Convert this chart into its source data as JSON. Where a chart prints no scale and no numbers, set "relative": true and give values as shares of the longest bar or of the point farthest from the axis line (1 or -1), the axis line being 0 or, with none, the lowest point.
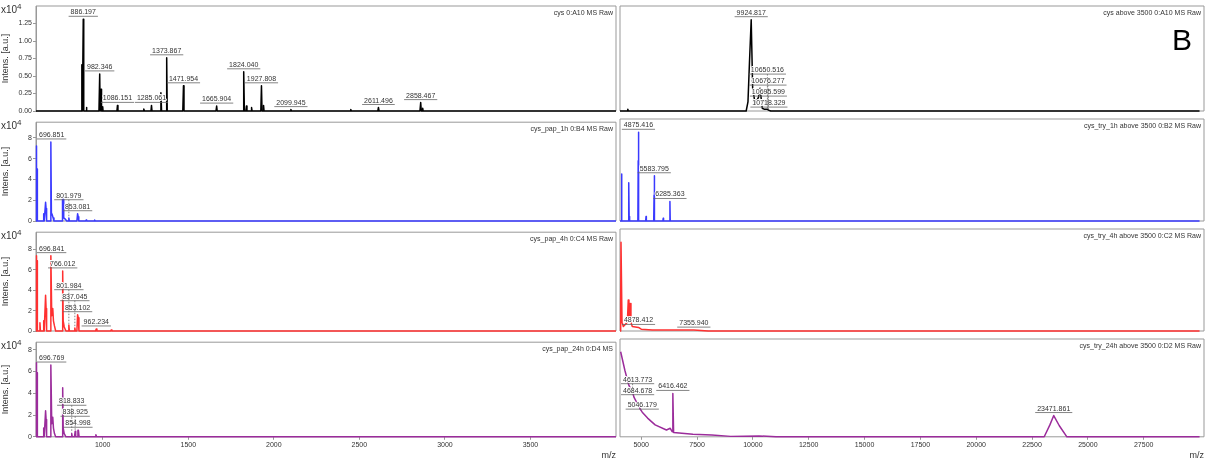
{
  "chart_data": [
    {
      "type": "line",
      "title": "cys 0:A10 MS Raw",
      "ylabel": "Intens. [a.u.]",
      "annotations": [
        "x10$^{4}$",
        {
          "text": "886.197",
          "x": 886.197,
          "y": 1.31
        },
        {
          "text": "982.346",
          "x": 982.346,
          "y": 0.53
        },
        {
          "text": "1086.151",
          "x": 1086.151,
          "y": 0.08
        },
        {
          "text": "1285.061",
          "x": 1285.061,
          "y": 0.08
        },
        {
          "text": "1373.867",
          "x": 1373.867,
          "y": 0.76
        },
        {
          "text": "1471.954",
          "x": 1471.954,
          "y": 0.36
        },
        {
          "text": "1665.904",
          "x": 1665.904,
          "y": 0.07
        },
        {
          "text": "1824.040",
          "x": 1824.04,
          "y": 0.56
        },
        {
          "text": "1927.808",
          "x": 1927.808,
          "y": 0.36
        },
        {
          "text": "2099.945",
          "x": 2099.945,
          "y": 0.02
        },
        {
          "text": "2611.496",
          "x": 2611.496,
          "y": 0.05
        },
        {
          "text": "2858.467",
          "x": 2858.467,
          "y": 0.12
        }
      ],
      "xlim": [
        610,
        4000
      ],
      "ylim": [
        0,
        1.5
      ],
      "yticks": [
        {
          "value": 0,
          "label": "0.00"
        },
        {
          "value": 0.25,
          "label": "0.25"
        },
        {
          "value": 0.5,
          "label": "0.50"
        },
        {
          "value": 0.75,
          "label": "0.75"
        },
        {
          "value": 1,
          "label": "1.00"
        },
        {
          "value": 1.25,
          "label": "1.25"
        }
      ],
      "tick_labels": "y",
      "series": [
        {
          "color": "#000000",
          "x": [
            610,
            874,
            878,
            881,
            883,
            886.197,
            889,
            903,
            905,
            907,
            978,
            982.346,
            985,
            987,
            990,
            993,
            998,
            1000,
            1002,
            1083,
            1086.151,
            1089,
            1236,
            1240,
            1244,
            1282,
            1285.061,
            1288,
            1336,
            1340,
            1344,
            1370,
            1373.867,
            1377,
            1468,
            1471.954,
            1475,
            1662,
            1665.904,
            1669,
            1820,
            1824.04,
            1828,
            1837,
            1840,
            1843,
            1867,
            1870,
            1873,
            1924,
            1927.808,
            1931,
            1937,
            1940,
            1943,
            2096,
            2099.945,
            2103,
            2446,
            2450,
            2454,
            2608,
            2611.496,
            2615,
            2854,
            2858.467,
            2862,
            2867,
            2870,
            2873,
            4000
          ],
          "values": [
            0,
            0,
            0.66,
            0,
            0,
            1.31,
            0,
            0,
            0.05,
            0,
            0,
            0.53,
            0,
            0,
            0.31,
            0,
            0,
            0.06,
            0,
            0,
            0.08,
            0,
            0,
            0.03,
            0,
            0,
            0.08,
            0,
            0,
            0.26,
            0,
            0,
            0.76,
            0,
            0,
            0.36,
            0,
            0,
            0.07,
            0,
            0,
            0.56,
            0,
            0,
            0.07,
            0,
            0,
            0.05,
            0,
            0,
            0.36,
            0,
            0,
            0.08,
            0,
            0,
            0.02,
            0,
            0,
            0.02,
            0,
            0,
            0.05,
            0,
            0,
            0.12,
            0,
            0,
            0.04,
            0,
            0
          ]
        }
      ]
    },
    {
      "type": "line",
      "title": "cys above 3500 0:A10 MS Raw",
      "relative": true,
      "annotations": [
        "B",
        {
          "text": "9924.817",
          "x": 9924.817,
          "y": 1
        },
        {
          "text": "10650.516",
          "x": 10650.516,
          "y": 0.02
        },
        {
          "text": "10676.277",
          "x": 10676.277,
          "y": 0.02
        },
        {
          "text": "10695.599",
          "x": 10695.599,
          "y": 0.01
        },
        {
          "text": "10718.329",
          "x": 10718.329,
          "y": 0.01
        }
      ],
      "xlim": [
        4050,
        30200
      ],
      "tick_labels": false,
      "series": [
        {
          "color": "#000000",
          "x": [
            4050,
            4380,
            4400,
            4420,
            9700,
            9780,
            9850,
            9924.817,
            9990,
            10100,
            10250,
            10320,
            10420,
            10500,
            10650.516,
            10676.277,
            10695.599,
            10718.329,
            10800,
            30000
          ],
          "values": [
            0,
            0,
            0.02,
            0,
            0,
            0.1,
            0.55,
            1,
            0.25,
            0.08,
            0.15,
            0.25,
            0.03,
            0.02,
            0.02,
            0.02,
            0.01,
            0.01,
            0,
            0
          ]
        }
      ]
    },
    {
      "type": "line",
      "title": "cys_pap_1h 0:B4 MS Raw",
      "ylabel": "Intens. [a.u.]",
      "annotations": [
        "x10$^{4}$",
        {
          "text": "696.851",
          "x": 696.851,
          "y": 7.6
        },
        {
          "text": "801.979",
          "x": 801.979,
          "y": 0.3
        },
        {
          "text": "853.081",
          "x": 853.081,
          "y": 0.7
        }
      ],
      "xlim": [
        610,
        4000
      ],
      "ylim": [
        0,
        9.5
      ],
      "yticks": [
        0,
        2,
        4,
        6,
        8
      ],
      "tick_labels": "y",
      "series": [
        {
          "color": "#3a3aff",
          "x": [
            610,
            612,
            614,
            616,
            618,
            652,
            655,
            658,
            662,
            666,
            669,
            672,
            693,
            696.851,
            700,
            705,
            710,
            715,
            762,
            765,
            769,
            772,
            780,
            790,
            798,
            801.979,
            805,
            849,
            853.081,
            857,
            860,
            900,
            903,
            906,
            950,
            953,
            956,
            4000
          ],
          "values": [
            0,
            7.2,
            0,
            5,
            0,
            0,
            0.7,
            0,
            0,
            1.8,
            1.2,
            0,
            0,
            7.6,
            0.8,
            0.6,
            0.3,
            0,
            0,
            2.4,
            2.1,
            0.3,
            0.2,
            0,
            0,
            0.3,
            0,
            0,
            0.7,
            0.4,
            0,
            0,
            0.1,
            0,
            0,
            0.1,
            0,
            0
          ]
        }
      ]
    },
    {
      "type": "line",
      "title": "cys_try_1h above 3500 0:B2 MS Raw",
      "relative": true,
      "annotations": [
        {
          "text": "4875.416",
          "x": 4875.416,
          "y": 1
        },
        {
          "text": "5583.795",
          "x": 5583.795,
          "y": 0.51
        },
        {
          "text": "6285.363",
          "x": 6285.363,
          "y": 0.22
        }
      ],
      "xlim": [
        4050,
        30200
      ],
      "tick_labels": false,
      "series": [
        {
          "color": "#3a3aff",
          "x": [
            4050,
            4100,
            4119,
            4135,
            4420,
            4441,
            4460,
            4480,
            4850,
            4865,
            4875.416,
            4890,
            5200,
            5215,
            5230,
            5560,
            5575,
            5583.795,
            5600,
            5970,
            5985,
            6000,
            6270,
            6285.363,
            6300,
            30000
          ],
          "values": [
            0,
            0,
            0.53,
            0,
            0,
            0.43,
            0.05,
            0,
            0,
            0.68,
            1,
            0,
            0,
            0.05,
            0,
            0,
            0.29,
            0.51,
            0,
            0,
            0.03,
            0,
            0,
            0.22,
            0,
            0
          ]
        }
      ]
    },
    {
      "type": "line",
      "title": "cys_pap_4h 0:C4 MS Raw",
      "ylabel": "Intens. [a.u.]",
      "annotations": [
        "x10$^{4}$",
        {
          "text": "696.841",
          "x": 696.841,
          "y": 7.4
        },
        {
          "text": "766.012",
          "x": 766.012,
          "y": 5.9
        },
        {
          "text": "801.984",
          "x": 801.984,
          "y": 0.6
        },
        {
          "text": "837.045",
          "x": 837.045,
          "y": 0.3
        },
        {
          "text": "853.102",
          "x": 853.102,
          "y": 1.6
        },
        {
          "text": "962.234",
          "x": 962.234,
          "y": 0.2
        }
      ],
      "xlim": [
        610,
        4000
      ],
      "ylim": [
        0,
        9.7
      ],
      "yticks": [
        0,
        2,
        4,
        6,
        8
      ],
      "tick_labels": "y",
      "series": [
        {
          "color": "#ff3030",
          "x": [
            610,
            612,
            614,
            616,
            618,
            630,
            633,
            636,
            652,
            655,
            658,
            662,
            666,
            669,
            672,
            693,
            696.841,
            702,
            708,
            712,
            718,
            725,
            762,
            766.012,
            769,
            775,
            785,
            798,
            801.984,
            805,
            834,
            837.045,
            840,
            849,
            853.102,
            857,
            861,
            958,
            962.234,
            966,
            1046,
            1050,
            1054,
            4000
          ],
          "values": [
            0,
            7.4,
            0,
            6.9,
            0,
            0,
            0.8,
            0,
            0,
            1,
            0,
            0,
            3.5,
            2.2,
            0,
            0,
            7.4,
            1.5,
            2.2,
            1,
            0.5,
            0,
            0,
            5.9,
            1,
            0.4,
            0,
            0,
            0.6,
            0,
            0,
            0.3,
            0,
            0,
            1.6,
            1.3,
            0,
            0,
            0.2,
            0,
            0,
            0.1,
            0,
            0
          ]
        }
      ]
    },
    {
      "type": "line",
      "title": "cys_try_4h above 3500 0:C2 MS Raw",
      "relative": true,
      "annotations": [
        {
          "text": "4878.412",
          "x": 4878.412,
          "y": 0.04
        },
        {
          "text": "7355.940",
          "x": 7355.94,
          "y": 0.01
        }
      ],
      "xlim": [
        4050,
        30200
      ],
      "tick_labels": false,
      "series": [
        {
          "color": "#ff3030",
          "x": [
            4050,
            4080,
            4095,
            4140,
            4200,
            4380,
            4420,
            4450,
            4500,
            4540,
            4600,
            4878.412,
            5000,
            5500,
            7355.94,
            8000,
            30000
          ],
          "values": [
            0,
            0.3,
            1,
            0.1,
            0.05,
            0.1,
            0.35,
            0.15,
            0.31,
            0.1,
            0.05,
            0.04,
            0.02,
            0.01,
            0.01,
            0,
            0
          ]
        }
      ]
    },
    {
      "type": "line",
      "title": "cys_pap_24h 0:D4 MS",
      "ylabel": "Intens. [a.u.]",
      "xlabel": "m/z",
      "annotations": [
        "x10$^{4}$",
        {
          "text": "696.769",
          "x": 696.769,
          "y": 6.6
        },
        {
          "text": "818.833",
          "x": 818.833,
          "y": 0.3
        },
        {
          "text": "838.925",
          "x": 838.925,
          "y": 0.5
        },
        {
          "text": "854.998",
          "x": 854.998,
          "y": 0.6
        }
      ],
      "xlim": [
        610,
        4000
      ],
      "ylim": [
        0,
        8.7
      ],
      "xticks": [
        1000,
        1500,
        2000,
        2500,
        3000,
        3500
      ],
      "yticks": [
        0,
        2,
        4,
        6,
        8
      ],
      "series": [
        {
          "color": "#9b2c9b",
          "x": [
            610,
            612,
            614,
            616,
            618,
            652,
            655,
            658,
            662,
            666,
            669,
            672,
            693,
            696.769,
            702,
            708,
            712,
            718,
            725,
            762,
            766,
            769,
            775,
            785,
            815,
            818.833,
            822,
            835,
            838.925,
            842,
            851,
            854.998,
            858,
            862,
            956,
            960,
            964,
            4000
          ],
          "values": [
            0,
            6.8,
            0,
            5.9,
            0,
            0,
            0.8,
            0,
            0,
            2.4,
            1.6,
            0,
            0,
            6.6,
            1.2,
            1.8,
            0.8,
            0.3,
            0,
            0,
            4.5,
            0.8,
            0.3,
            0,
            0,
            0.3,
            0,
            0,
            0.5,
            0,
            0,
            0.6,
            0.6,
            0,
            0,
            0.2,
            0,
            0
          ]
        }
      ]
    },
    {
      "type": "line",
      "title": "cys_try_24h above 3500 0:D2 MS Raw",
      "relative": true,
      "xlabel": "m/z",
      "annotations": [
        {
          "text": "4613.773",
          "x": 4613.773,
          "y": 0.52
        },
        {
          "text": "4684.678",
          "x": 4684.678,
          "y": 0.46
        },
        {
          "text": "5046.179",
          "x": 5046.179,
          "y": 0.29
        },
        {
          "text": "6416.462",
          "x": 6416.462,
          "y": 0.51
        },
        {
          "text": "23471.861",
          "x": 23471.861,
          "y": 0.25
        }
      ],
      "xlim": [
        4050,
        30200
      ],
      "xticks": [
        5000,
        7500,
        10000,
        12500,
        15000,
        17500,
        20000,
        22500,
        25000,
        27500
      ],
      "tick_labels": "x",
      "series": [
        {
          "color": "#9b2c9b",
          "x": [
            4080,
            4270,
            4440,
            4613.773,
            4684.678,
            4946,
            5046.179,
            5285,
            5623,
            6130,
            6300,
            6385,
            6416.462,
            6450,
            7314,
            8160,
            9005,
            10274,
            11035,
            23045,
            23299,
            23471.861,
            23722,
            24060,
            30000
          ],
          "values": [
            1,
            0.78,
            0.61,
            0.52,
            0.46,
            0.33,
            0.29,
            0.22,
            0.14,
            0.08,
            0.1,
            0.06,
            0.51,
            0.05,
            0.03,
            0.02,
            0.005,
            0.01,
            0,
            0,
            0.14,
            0.25,
            0.13,
            0,
            0
          ]
        }
      ]
    }
  ]
}
